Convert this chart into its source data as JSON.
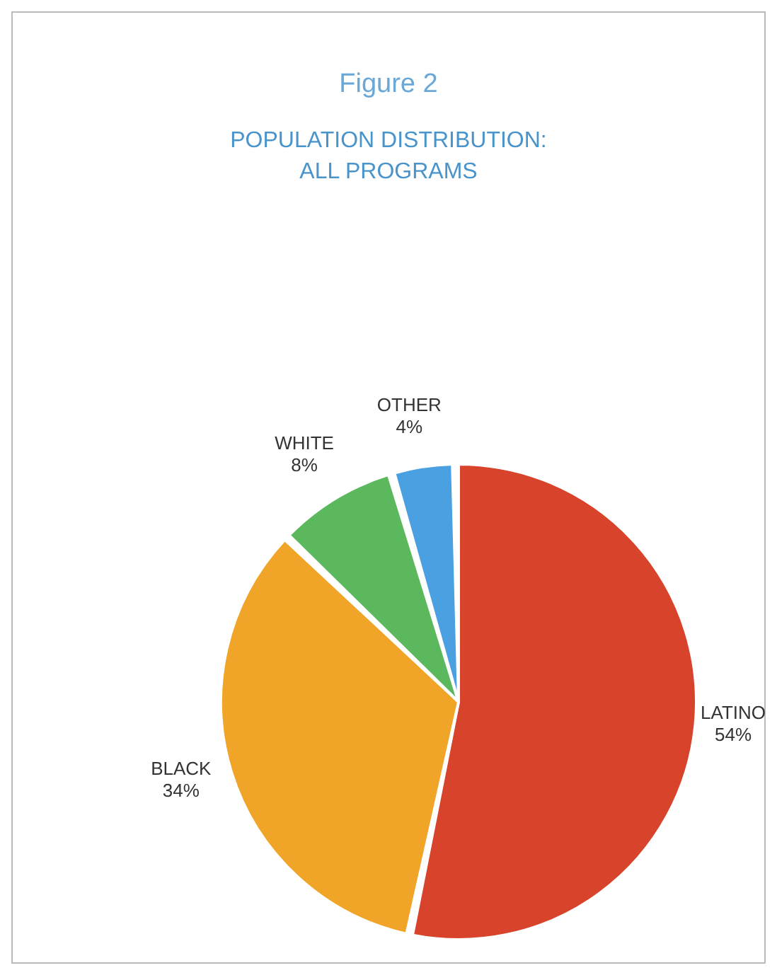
{
  "chart_data": {
    "type": "pie",
    "title": "Figure 2",
    "subtitle": "POPULATION DISTRIBUTION:\nALL PROGRAMS",
    "categories": [
      "LATINO",
      "BLACK",
      "WHITE",
      "OTHER"
    ],
    "values": [
      54,
      34,
      8,
      4
    ],
    "value_labels": [
      "54%",
      "34%",
      "8%",
      "4%"
    ],
    "colors": [
      "#d8432c",
      "#f0a428",
      "#5cb85c",
      "#4aa0e0"
    ]
  }
}
